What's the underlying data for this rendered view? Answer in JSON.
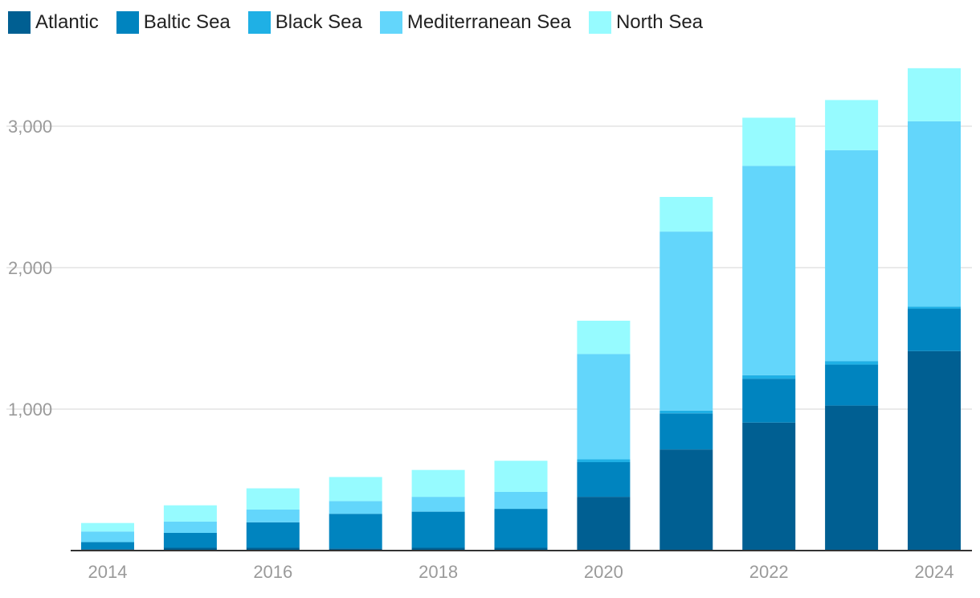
{
  "chart_data": {
    "type": "bar",
    "stacked": true,
    "title": "",
    "xlabel": "",
    "ylabel": "",
    "ylim": [
      0,
      3500
    ],
    "yticks": [
      1000,
      2000,
      3000
    ],
    "ytick_labels": [
      "1,000",
      "2,000",
      "3,000"
    ],
    "categories": [
      "2014",
      "2015",
      "2016",
      "2017",
      "2018",
      "2019",
      "2020",
      "2021",
      "2022",
      "2023",
      "2024"
    ],
    "xtick_labels": [
      "2014",
      "",
      "2016",
      "",
      "2018",
      "",
      "2020",
      "",
      "2022",
      "",
      "2024"
    ],
    "legend_position": "top-left",
    "series": [
      {
        "name": "Atlantic",
        "color": "#005f92",
        "values": [
          10,
          20,
          20,
          15,
          20,
          20,
          380,
          715,
          905,
          1025,
          1410
        ]
      },
      {
        "name": "Baltic Sea",
        "color": "#0084bf",
        "values": [
          50,
          105,
          180,
          245,
          255,
          275,
          245,
          255,
          310,
          290,
          300
        ]
      },
      {
        "name": "Black Sea",
        "color": "#1fb0e5",
        "values": [
          0,
          0,
          0,
          0,
          0,
          0,
          20,
          20,
          25,
          25,
          15
        ]
      },
      {
        "name": "Mediterranean Sea",
        "color": "#63d6fb",
        "values": [
          75,
          80,
          90,
          90,
          105,
          120,
          745,
          1265,
          1480,
          1490,
          1310
        ]
      },
      {
        "name": "North Sea",
        "color": "#96fbff",
        "values": [
          60,
          115,
          150,
          170,
          190,
          220,
          235,
          245,
          340,
          355,
          375
        ]
      }
    ]
  }
}
